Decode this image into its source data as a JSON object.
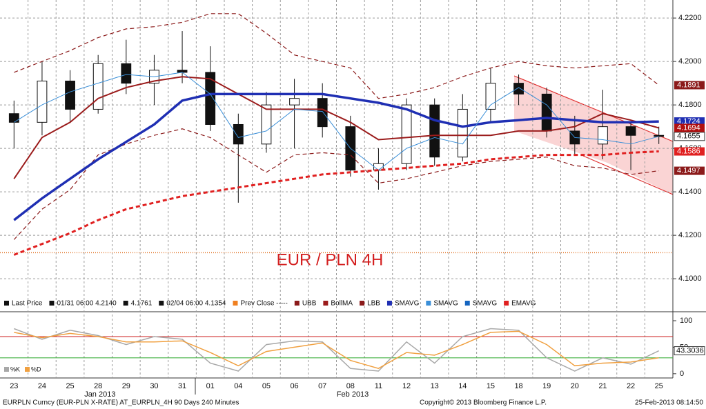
{
  "chart_data": {
    "type": "candlestick",
    "title": "EUR / PLN 4H",
    "categories": [
      "23",
      "24",
      "25",
      "28",
      "29",
      "30",
      "31",
      "01",
      "04",
      "05",
      "06",
      "07",
      "08",
      "11",
      "12",
      "13",
      "14",
      "15",
      "18",
      "19",
      "20",
      "21",
      "22",
      "25"
    ],
    "month_labels": [
      "Jan 2013",
      "Feb 2013"
    ],
    "open": [
      4.176,
      4.172,
      4.191,
      4.178,
      4.199,
      4.19,
      4.196,
      4.195,
      4.171,
      4.162,
      4.18,
      4.183,
      4.17,
      4.15,
      4.153,
      4.18,
      4.156,
      4.178,
      4.19,
      4.185,
      4.168,
      4.162,
      4.17,
      4.166
    ],
    "high": [
      4.182,
      4.2,
      4.196,
      4.203,
      4.21,
      4.203,
      4.214,
      4.207,
      4.176,
      4.186,
      4.192,
      4.19,
      4.175,
      4.16,
      4.183,
      4.183,
      4.185,
      4.197,
      4.194,
      4.188,
      4.175,
      4.187,
      4.172,
      4.17
    ],
    "low": [
      4.16,
      4.166,
      4.172,
      4.176,
      4.185,
      4.18,
      4.19,
      4.168,
      4.135,
      4.158,
      4.16,
      4.165,
      4.147,
      4.141,
      4.15,
      4.152,
      4.154,
      4.172,
      4.18,
      4.165,
      4.157,
      4.155,
      4.15,
      4.162
    ],
    "close": [
      4.172,
      4.191,
      4.178,
      4.199,
      4.19,
      4.196,
      4.195,
      4.171,
      4.162,
      4.18,
      4.183,
      4.17,
      4.15,
      4.153,
      4.18,
      4.156,
      4.178,
      4.19,
      4.185,
      4.168,
      4.162,
      4.17,
      4.166,
      4.1655
    ],
    "series": [
      {
        "name": "UBB",
        "color": "#8b1a1a",
        "dash": true,
        "width": 1.2,
        "values": [
          4.195,
          4.2,
          4.205,
          4.211,
          4.215,
          4.216,
          4.218,
          4.222,
          4.222,
          4.213,
          4.203,
          4.2,
          4.197,
          4.183,
          4.185,
          4.188,
          4.193,
          4.197,
          4.2,
          4.198,
          4.197,
          4.198,
          4.199,
          4.1891
        ]
      },
      {
        "name": "BollMA",
        "color": "#9b1c1c",
        "dash": false,
        "width": 2,
        "values": [
          4.146,
          4.165,
          4.172,
          4.183,
          4.188,
          4.191,
          4.193,
          4.192,
          4.185,
          4.178,
          4.178,
          4.178,
          4.172,
          4.164,
          4.165,
          4.166,
          4.166,
          4.166,
          4.168,
          4.168,
          4.17,
          4.176,
          4.173,
          4.1694
        ]
      },
      {
        "name": "LBB",
        "color": "#8b1a1a",
        "dash": true,
        "width": 1.2,
        "values": [
          4.118,
          4.132,
          4.141,
          4.157,
          4.162,
          4.166,
          4.169,
          4.165,
          4.157,
          4.149,
          4.157,
          4.158,
          4.157,
          4.144,
          4.146,
          4.149,
          4.152,
          4.154,
          4.155,
          4.156,
          4.152,
          4.151,
          4.148,
          4.1497
        ]
      },
      {
        "name": "SMAVG",
        "color": "#1f2fb3",
        "dash": false,
        "width": 3.5,
        "values": [
          4.127,
          4.137,
          4.146,
          4.155,
          4.163,
          4.171,
          4.182,
          4.185,
          4.185,
          4.185,
          4.185,
          4.185,
          4.183,
          4.181,
          4.178,
          4.173,
          4.17,
          4.172,
          4.173,
          4.174,
          4.173,
          4.172,
          4.172,
          4.1724
        ]
      },
      {
        "name": "SMAVG",
        "color": "#3a8fd8",
        "dash": false,
        "width": 1,
        "values": [
          4.172,
          4.18,
          4.186,
          4.19,
          4.194,
          4.193,
          4.195,
          4.185,
          4.165,
          4.168,
          4.178,
          4.177,
          4.16,
          4.15,
          4.16,
          4.165,
          4.162,
          4.18,
          4.188,
          4.18,
          4.165,
          4.164,
          4.162,
          4.1655
        ]
      },
      {
        "name": "EMAVG",
        "color": "#e02020",
        "dash": true,
        "width": 3,
        "values": [
          4.111,
          4.116,
          4.121,
          4.127,
          4.132,
          4.135,
          4.138,
          4.14,
          4.142,
          4.144,
          4.146,
          4.148,
          4.149,
          4.15,
          4.151,
          4.152,
          4.153,
          4.155,
          4.156,
          4.157,
          4.157,
          4.157,
          4.158,
          4.1586
        ]
      }
    ],
    "legend_prefix": [
      {
        "label": "Last Price",
        "color": "#111111"
      },
      {
        "label": "01/31 06:00 4.2140",
        "color": "#111111"
      },
      {
        "label": "4.1761",
        "color": "#111111"
      },
      {
        "label": "02/04 06:00 4.1354",
        "color": "#111111"
      },
      {
        "label": "Prev Close -----",
        "color": "#f08020"
      }
    ],
    "legend_only": [
      {
        "label": "SMAVG",
        "color": "#1565c0"
      }
    ],
    "prev_close": 4.112,
    "prev_close_color": "#e07020",
    "ylim": [
      4.0848,
      4.2283
    ],
    "yticks": [
      {
        "value": 4.1,
        "label": "4.1000"
      },
      {
        "value": 4.12,
        "label": "4.1200"
      },
      {
        "value": 4.14,
        "label": "4.1400"
      },
      {
        "value": 4.16,
        "label": "4.1600"
      },
      {
        "value": 4.18,
        "label": "4.1800"
      },
      {
        "value": 4.2,
        "label": "4.2000"
      },
      {
        "value": 4.22,
        "label": "4.2200"
      }
    ],
    "grid": true,
    "price_tags": [
      {
        "value": 4.1891,
        "color": "#8b1a1a"
      },
      {
        "value": 4.1724,
        "color": "#1f2fb3"
      },
      {
        "value": 4.1694,
        "color": "#b01010"
      },
      {
        "value": 4.1655,
        "color": "#ffffff"
      },
      {
        "value": 4.1586,
        "color": "#e02020"
      },
      {
        "value": 4.1497,
        "color": "#8b1a1a"
      }
    ],
    "stochastic": {
      "ylim": [
        -8,
        113
      ],
      "yticks": [
        0,
        50,
        100
      ],
      "levels": [
        70,
        30
      ],
      "level_colors": [
        "#d03030",
        "#40b040"
      ],
      "series": [
        {
          "name": "%K",
          "color": "#a8a8a8",
          "values": [
            85,
            65,
            82,
            72,
            55,
            70,
            65,
            20,
            5,
            55,
            62,
            60,
            10,
            5,
            60,
            20,
            70,
            85,
            82,
            30,
            5,
            30,
            18,
            43.3036
          ]
        },
        {
          "name": "%D",
          "color": "#f0a040",
          "values": [
            78,
            68,
            76,
            70,
            60,
            60,
            62,
            40,
            15,
            42,
            50,
            58,
            25,
            10,
            40,
            35,
            55,
            78,
            80,
            55,
            15,
            20,
            22,
            30
          ]
        }
      ],
      "last_tag": 43.3036
    },
    "footer": {
      "left": "EURPLN Curncy (EUR-PLN X-RATE) AT_EURPLN_4H 90 Days 240 Minutes",
      "center": "Copyright© 2013 Bloomberg Finance L.P.",
      "right": "25-Feb-2013 08:14:50"
    }
  }
}
